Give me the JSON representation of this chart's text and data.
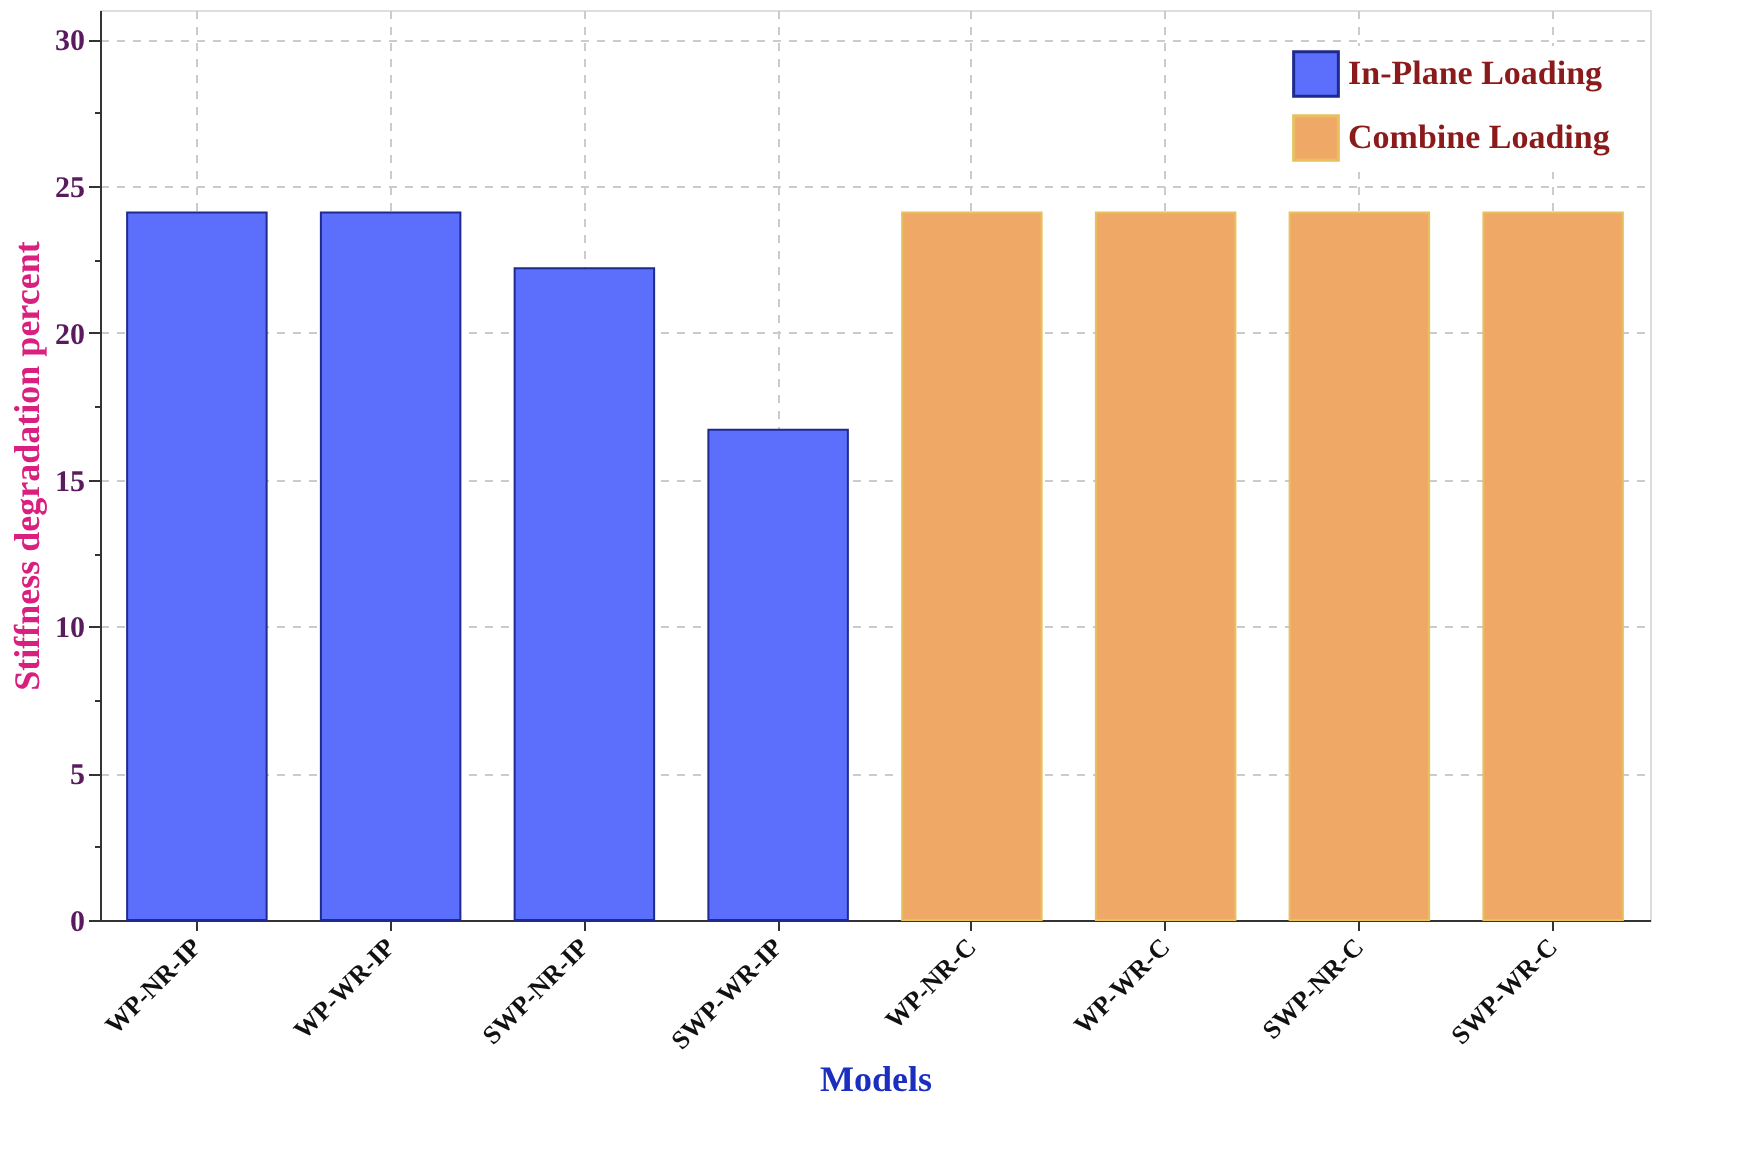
{
  "chart_data": {
    "type": "bar",
    "xlabel": "Models",
    "ylabel": "Stiffness degradation percent",
    "categories": [
      "WP-NR-IP",
      "WP-WR-IP",
      "SWP-NR-IP",
      "SWP-WR-IP",
      "WP-NR-C",
      "WP-WR-C",
      "SWP-NR-C",
      "SWP-WR-C"
    ],
    "series": [
      {
        "name": "In-Plane Loading",
        "color": "#5b6ffc",
        "values": [
          24.1,
          24.1,
          22.2,
          16.7,
          null,
          null,
          null,
          null
        ]
      },
      {
        "name": "Combine Loading",
        "color": "#f0a866",
        "values": [
          null,
          null,
          null,
          null,
          24.1,
          24.1,
          24.1,
          24.1
        ]
      }
    ],
    "ylim": [
      0,
      31
    ],
    "yticks": [
      0,
      {
        "value": 2.5,
        "label": null
      },
      5,
      {
        "value": 7.5,
        "label": null
      },
      10,
      {
        "value": 12.5,
        "label": null
      },
      15,
      {
        "value": 17.5,
        "label": null
      },
      20,
      {
        "value": 22.5,
        "label": null
      },
      25,
      {
        "value": 27.5,
        "label": null
      },
      30
    ],
    "grid": true,
    "legend": "top right"
  }
}
